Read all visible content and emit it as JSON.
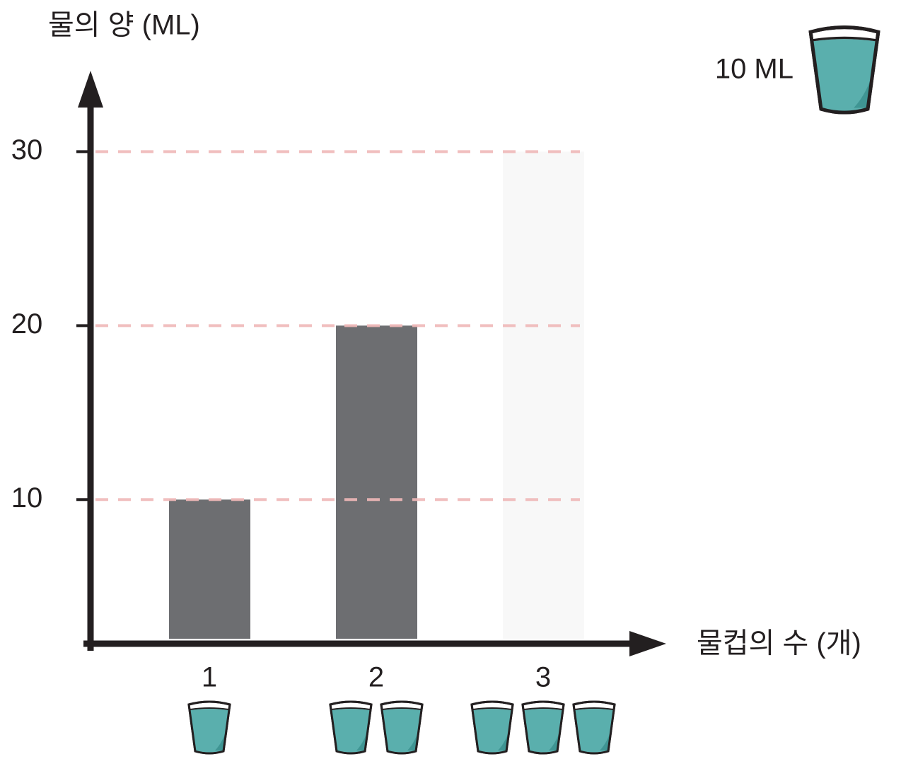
{
  "chart_data": {
    "type": "bar",
    "y_label": "물의 양 (ML)",
    "x_label": "물컵의 수 (개)",
    "legend_label": "10 ML",
    "categories": [
      "1",
      "2",
      "3"
    ],
    "values": [
      10,
      20,
      30
    ],
    "colors": [
      "#6d6e71",
      "#6d6e71",
      "#f8f8f8"
    ],
    "ylim": [
      2,
      34
    ],
    "yticks": [
      10,
      20,
      30
    ],
    "grid": true,
    "grid_color": "#f0b9b9"
  }
}
